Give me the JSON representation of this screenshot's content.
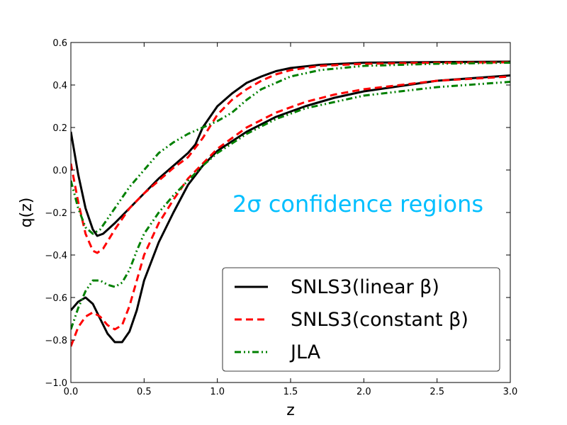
{
  "chart_data": {
    "type": "line",
    "title": "",
    "xlabel": "z",
    "ylabel": "q(z)",
    "xlim": [
      0.0,
      3.0
    ],
    "ylim": [
      -1.0,
      0.6
    ],
    "xticks": [
      0.0,
      0.5,
      1.0,
      1.5,
      2.0,
      2.5,
      3.0
    ],
    "xtick_labels": [
      "0.0",
      "0.5",
      "1.0",
      "1.5",
      "2.0",
      "2.5",
      "3.0"
    ],
    "yticks": [
      -1.0,
      -0.8,
      -0.6,
      -0.4,
      -0.2,
      0.0,
      0.2,
      0.4,
      0.6
    ],
    "ytick_labels": [
      "−1.0",
      "−0.8",
      "−0.6",
      "−0.4",
      "−0.2",
      "0.0",
      "0.2",
      "0.4",
      "0.6"
    ],
    "grid": false,
    "annotation": {
      "text": "2σ confidence regions",
      "color": "#00bfff",
      "position": [
        1.1,
        -0.17
      ]
    },
    "legend": {
      "placement": "lower-right",
      "entries": [
        {
          "label": "SNLS3(linear β)",
          "color": "#000000",
          "style": "solid"
        },
        {
          "label": "SNLS3(constant β)",
          "color": "#ff0000",
          "style": "dashed"
        },
        {
          "label": "JLA",
          "color": "#008000",
          "style": "dashdot"
        }
      ]
    },
    "series": [
      {
        "name": "SNLS3(linear β) upper",
        "legend_label": "SNLS3(linear β)",
        "color": "#000000",
        "style": "solid",
        "points": [
          [
            0,
            0.18
          ],
          [
            0.05,
            -0.02
          ],
          [
            0.1,
            -0.18
          ],
          [
            0.15,
            -0.28
          ],
          [
            0.18,
            -0.31
          ],
          [
            0.22,
            -0.3
          ],
          [
            0.3,
            -0.25
          ],
          [
            0.4,
            -0.18
          ],
          [
            0.5,
            -0.11
          ],
          [
            0.6,
            -0.04
          ],
          [
            0.7,
            0.02
          ],
          [
            0.8,
            0.08
          ],
          [
            0.85,
            0.12
          ],
          [
            0.9,
            0.2
          ],
          [
            1.0,
            0.3
          ],
          [
            1.1,
            0.36
          ],
          [
            1.2,
            0.41
          ],
          [
            1.3,
            0.44
          ],
          [
            1.4,
            0.465
          ],
          [
            1.5,
            0.48
          ],
          [
            1.7,
            0.495
          ],
          [
            2.0,
            0.505
          ],
          [
            2.5,
            0.508
          ],
          [
            3.0,
            0.51
          ]
        ]
      },
      {
        "name": "SNLS3(linear β) lower",
        "legend_label": "SNLS3(linear β)",
        "color": "#000000",
        "style": "solid",
        "points": [
          [
            0,
            -0.66
          ],
          [
            0.05,
            -0.62
          ],
          [
            0.1,
            -0.6
          ],
          [
            0.15,
            -0.63
          ],
          [
            0.2,
            -0.7
          ],
          [
            0.25,
            -0.77
          ],
          [
            0.3,
            -0.81
          ],
          [
            0.35,
            -0.81
          ],
          [
            0.4,
            -0.76
          ],
          [
            0.45,
            -0.66
          ],
          [
            0.5,
            -0.52
          ],
          [
            0.6,
            -0.34
          ],
          [
            0.7,
            -0.2
          ],
          [
            0.8,
            -0.07
          ],
          [
            0.9,
            0.02
          ],
          [
            1.0,
            0.09
          ],
          [
            1.2,
            0.18
          ],
          [
            1.4,
            0.25
          ],
          [
            1.6,
            0.3
          ],
          [
            1.8,
            0.34
          ],
          [
            2.0,
            0.37
          ],
          [
            2.5,
            0.42
          ],
          [
            3.0,
            0.445
          ]
        ]
      },
      {
        "name": "SNLS3(constant β) upper",
        "legend_label": "SNLS3(constant β)",
        "color": "#ff0000",
        "style": "dashed",
        "points": [
          [
            0,
            0.03
          ],
          [
            0.05,
            -0.15
          ],
          [
            0.1,
            -0.3
          ],
          [
            0.15,
            -0.38
          ],
          [
            0.18,
            -0.39
          ],
          [
            0.22,
            -0.37
          ],
          [
            0.3,
            -0.28
          ],
          [
            0.4,
            -0.18
          ],
          [
            0.5,
            -0.11
          ],
          [
            0.6,
            -0.05
          ],
          [
            0.7,
            0.01
          ],
          [
            0.8,
            0.06
          ],
          [
            0.9,
            0.15
          ],
          [
            1.0,
            0.26
          ],
          [
            1.1,
            0.33
          ],
          [
            1.2,
            0.38
          ],
          [
            1.3,
            0.42
          ],
          [
            1.4,
            0.45
          ],
          [
            1.5,
            0.47
          ],
          [
            1.7,
            0.49
          ],
          [
            2.0,
            0.5
          ],
          [
            2.5,
            0.505
          ],
          [
            3.0,
            0.507
          ]
        ]
      },
      {
        "name": "SNLS3(constant β) lower",
        "legend_label": "SNLS3(constant β)",
        "color": "#ff0000",
        "style": "dashed",
        "points": [
          [
            0,
            -0.83
          ],
          [
            0.05,
            -0.74
          ],
          [
            0.1,
            -0.69
          ],
          [
            0.15,
            -0.67
          ],
          [
            0.2,
            -0.69
          ],
          [
            0.25,
            -0.73
          ],
          [
            0.3,
            -0.75
          ],
          [
            0.35,
            -0.73
          ],
          [
            0.4,
            -0.64
          ],
          [
            0.45,
            -0.52
          ],
          [
            0.5,
            -0.4
          ],
          [
            0.6,
            -0.25
          ],
          [
            0.7,
            -0.14
          ],
          [
            0.8,
            -0.04
          ],
          [
            0.9,
            0.03
          ],
          [
            1.0,
            0.1
          ],
          [
            1.2,
            0.2
          ],
          [
            1.4,
            0.27
          ],
          [
            1.6,
            0.32
          ],
          [
            1.8,
            0.355
          ],
          [
            2.0,
            0.38
          ],
          [
            2.5,
            0.42
          ],
          [
            3.0,
            0.44
          ]
        ]
      },
      {
        "name": "JLA upper",
        "legend_label": "JLA",
        "color": "#008000",
        "style": "dashdot",
        "points": [
          [
            0,
            -0.05
          ],
          [
            0.05,
            -0.18
          ],
          [
            0.1,
            -0.27
          ],
          [
            0.15,
            -0.3
          ],
          [
            0.2,
            -0.28
          ],
          [
            0.3,
            -0.18
          ],
          [
            0.4,
            -0.08
          ],
          [
            0.5,
            0.0
          ],
          [
            0.6,
            0.08
          ],
          [
            0.7,
            0.13
          ],
          [
            0.8,
            0.17
          ],
          [
            0.9,
            0.2
          ],
          [
            1.0,
            0.23
          ],
          [
            1.1,
            0.27
          ],
          [
            1.2,
            0.33
          ],
          [
            1.3,
            0.38
          ],
          [
            1.4,
            0.41
          ],
          [
            1.5,
            0.44
          ],
          [
            1.7,
            0.47
          ],
          [
            2.0,
            0.49
          ],
          [
            2.5,
            0.5
          ],
          [
            3.0,
            0.505
          ]
        ]
      },
      {
        "name": "JLA lower",
        "legend_label": "JLA",
        "color": "#008000",
        "style": "dashdot",
        "points": [
          [
            0,
            -0.75
          ],
          [
            0.05,
            -0.65
          ],
          [
            0.1,
            -0.57
          ],
          [
            0.15,
            -0.52
          ],
          [
            0.2,
            -0.52
          ],
          [
            0.25,
            -0.54
          ],
          [
            0.3,
            -0.55
          ],
          [
            0.35,
            -0.53
          ],
          [
            0.4,
            -0.47
          ],
          [
            0.45,
            -0.38
          ],
          [
            0.5,
            -0.3
          ],
          [
            0.6,
            -0.2
          ],
          [
            0.7,
            -0.12
          ],
          [
            0.8,
            -0.05
          ],
          [
            0.9,
            0.02
          ],
          [
            1.0,
            0.08
          ],
          [
            1.2,
            0.17
          ],
          [
            1.4,
            0.24
          ],
          [
            1.6,
            0.29
          ],
          [
            1.8,
            0.32
          ],
          [
            2.0,
            0.35
          ],
          [
            2.5,
            0.39
          ],
          [
            3.0,
            0.415
          ]
        ]
      }
    ]
  }
}
